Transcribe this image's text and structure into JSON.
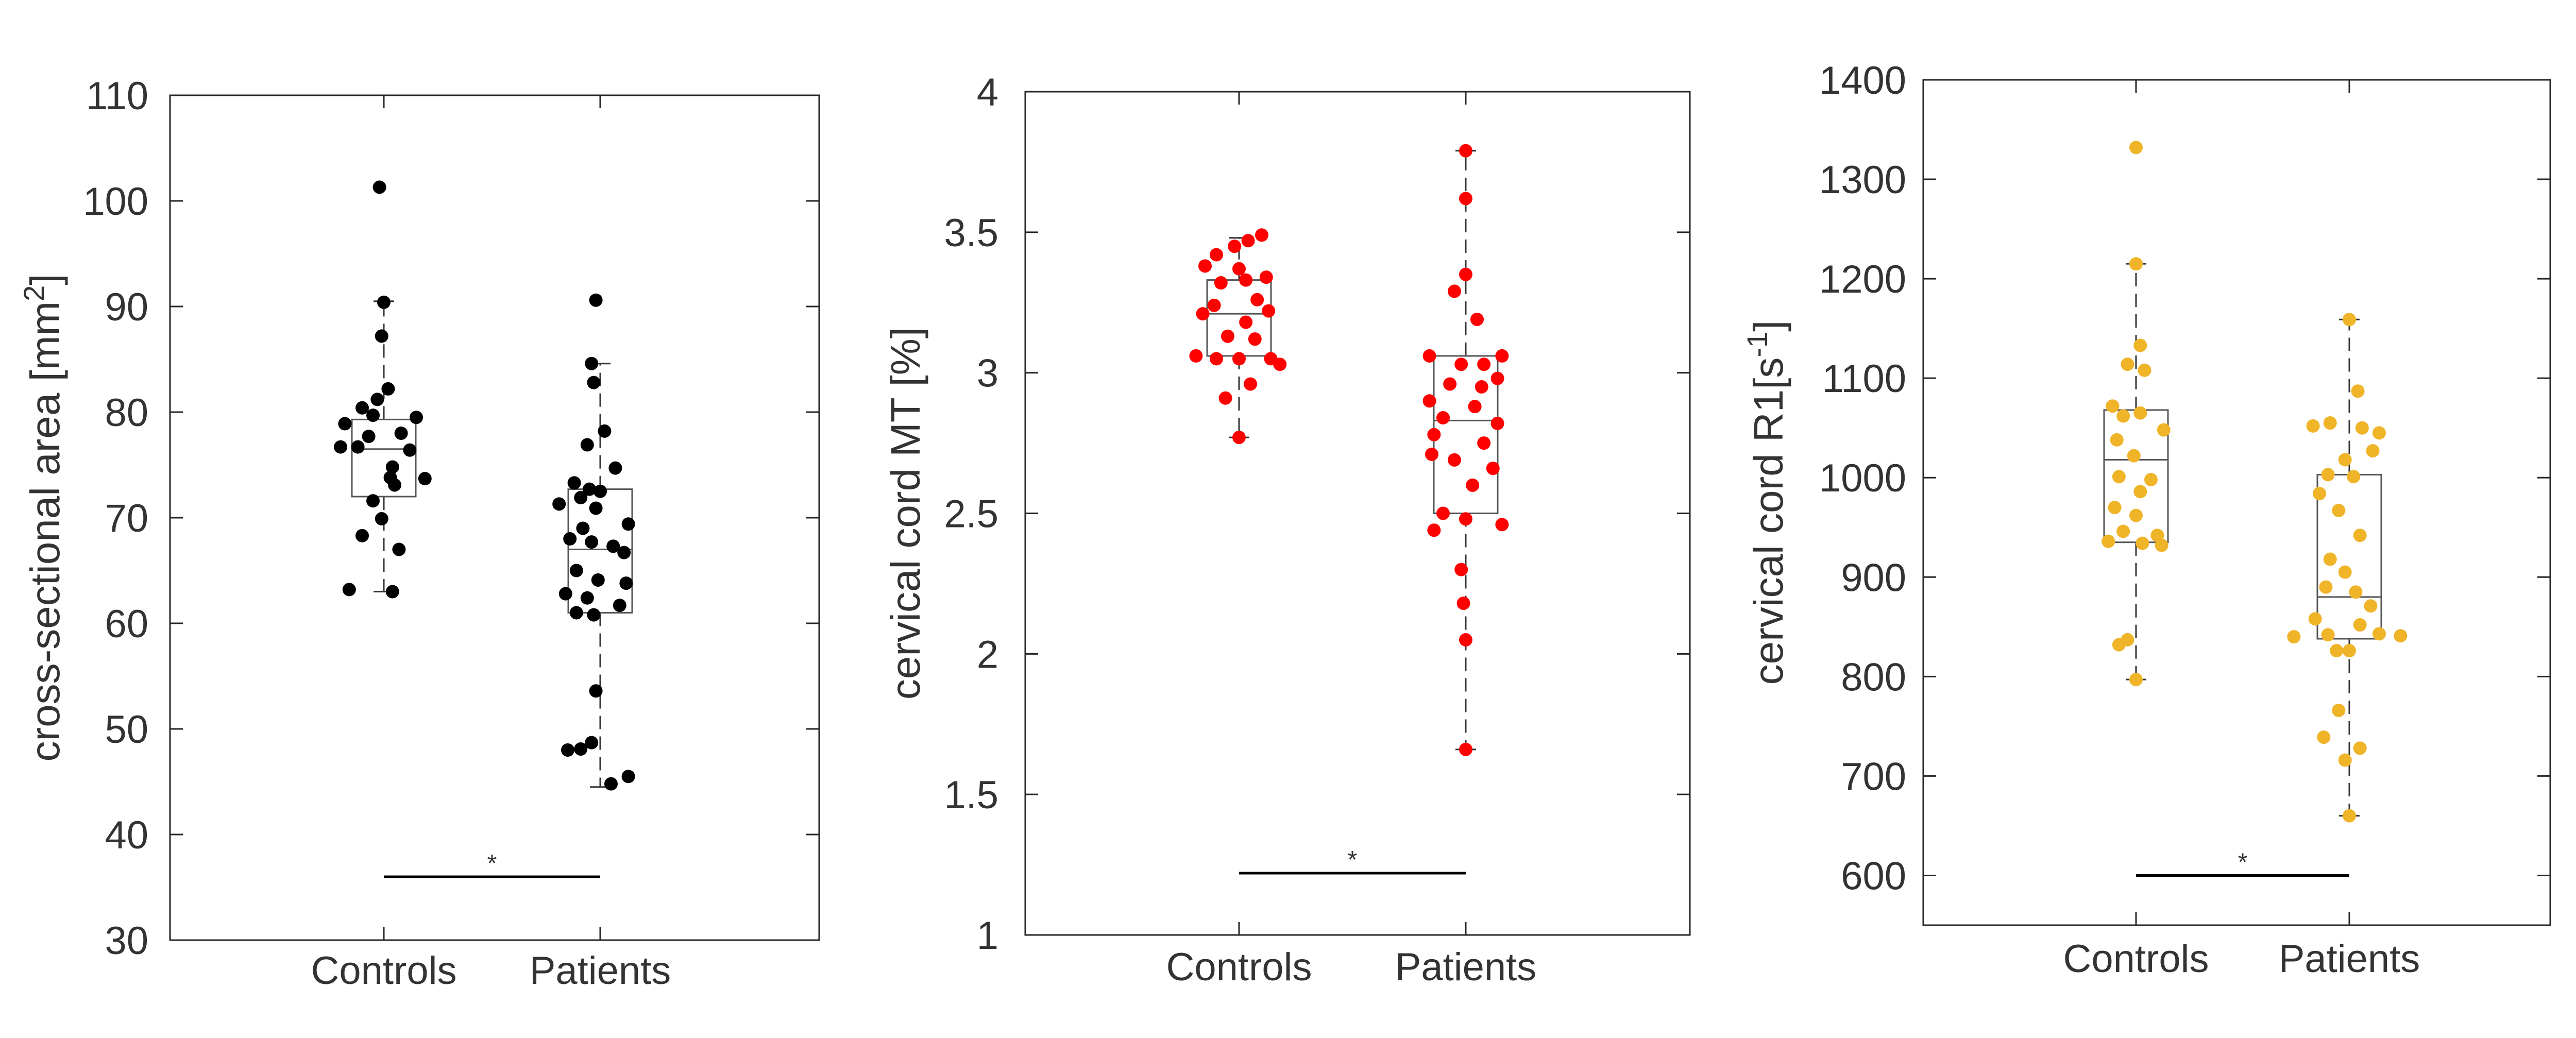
{
  "chart_data": [
    {
      "type": "box-scatter",
      "ylabel": "cross-sectional area [mm",
      "ylabel_sup": "2",
      "ylabel_suffix": "]",
      "ylim": [
        30,
        110
      ],
      "yticks": [
        30,
        40,
        50,
        60,
        70,
        80,
        90,
        100,
        110
      ],
      "categories": [
        "Controls",
        "Patients"
      ],
      "point_color": "#000000",
      "significance": {
        "label": "*",
        "y": 36
      },
      "series": [
        {
          "name": "Controls",
          "box": {
            "q1": 72,
            "median": 76.5,
            "q3": 79.3,
            "whisker_low": 63,
            "whisker_high": 90.5
          },
          "points": [
            {
              "jitter": -0.02,
              "y": 101.3
            },
            {
              "jitter": 0.0,
              "y": 90.4
            },
            {
              "jitter": -0.01,
              "y": 87.2
            },
            {
              "jitter": 0.02,
              "y": 82.2
            },
            {
              "jitter": -0.03,
              "y": 81.2
            },
            {
              "jitter": -0.1,
              "y": 80.4
            },
            {
              "jitter": -0.05,
              "y": 79.7
            },
            {
              "jitter": 0.15,
              "y": 79.5
            },
            {
              "jitter": -0.18,
              "y": 78.9
            },
            {
              "jitter": 0.08,
              "y": 78.0
            },
            {
              "jitter": -0.07,
              "y": 77.7
            },
            {
              "jitter": -0.2,
              "y": 76.7
            },
            {
              "jitter": -0.12,
              "y": 76.7
            },
            {
              "jitter": 0.12,
              "y": 76.4
            },
            {
              "jitter": 0.04,
              "y": 74.8
            },
            {
              "jitter": 0.03,
              "y": 73.8
            },
            {
              "jitter": 0.19,
              "y": 73.7
            },
            {
              "jitter": 0.05,
              "y": 73.1
            },
            {
              "jitter": -0.05,
              "y": 71.6
            },
            {
              "jitter": -0.01,
              "y": 69.9
            },
            {
              "jitter": -0.1,
              "y": 68.3
            },
            {
              "jitter": 0.07,
              "y": 67.0
            },
            {
              "jitter": -0.16,
              "y": 63.2
            },
            {
              "jitter": 0.04,
              "y": 63.0
            }
          ]
        },
        {
          "name": "Patients",
          "box": {
            "q1": 61,
            "median": 67,
            "q3": 72.7,
            "whisker_low": 44.5,
            "whisker_high": 84.6
          },
          "points": [
            {
              "jitter": -0.02,
              "y": 90.6
            },
            {
              "jitter": -0.04,
              "y": 84.6
            },
            {
              "jitter": -0.03,
              "y": 82.8
            },
            {
              "jitter": 0.02,
              "y": 78.2
            },
            {
              "jitter": -0.06,
              "y": 76.9
            },
            {
              "jitter": 0.07,
              "y": 74.7
            },
            {
              "jitter": -0.12,
              "y": 73.3
            },
            {
              "jitter": -0.05,
              "y": 72.7
            },
            {
              "jitter": 0.0,
              "y": 72.5
            },
            {
              "jitter": -0.09,
              "y": 71.9
            },
            {
              "jitter": -0.19,
              "y": 71.3
            },
            {
              "jitter": -0.02,
              "y": 70.9
            },
            {
              "jitter": 0.13,
              "y": 69.4
            },
            {
              "jitter": -0.08,
              "y": 69.0
            },
            {
              "jitter": -0.14,
              "y": 68.0
            },
            {
              "jitter": -0.04,
              "y": 67.7
            },
            {
              "jitter": 0.06,
              "y": 67.3
            },
            {
              "jitter": 0.11,
              "y": 66.7
            },
            {
              "jitter": -0.11,
              "y": 65.0
            },
            {
              "jitter": -0.01,
              "y": 64.1
            },
            {
              "jitter": 0.12,
              "y": 63.8
            },
            {
              "jitter": -0.16,
              "y": 62.8
            },
            {
              "jitter": -0.06,
              "y": 62.4
            },
            {
              "jitter": 0.09,
              "y": 61.7
            },
            {
              "jitter": -0.11,
              "y": 61.0
            },
            {
              "jitter": -0.03,
              "y": 60.8
            },
            {
              "jitter": -0.02,
              "y": 53.6
            },
            {
              "jitter": -0.04,
              "y": 48.7
            },
            {
              "jitter": -0.09,
              "y": 48.1
            },
            {
              "jitter": -0.15,
              "y": 48.0
            },
            {
              "jitter": 0.13,
              "y": 45.5
            },
            {
              "jitter": 0.05,
              "y": 44.8
            }
          ]
        }
      ]
    },
    {
      "type": "box-scatter",
      "ylabel": "cervical cord MT [%]",
      "ylim": [
        1,
        4
      ],
      "yticks": [
        1,
        1.5,
        2,
        2.5,
        3,
        3.5,
        4
      ],
      "categories": [
        "Controls",
        "Patients"
      ],
      "point_color": "#ff0000",
      "significance": {
        "label": "*",
        "y": 1.22
      },
      "series": [
        {
          "name": "Controls",
          "box": {
            "q1": 3.06,
            "median": 3.21,
            "q3": 3.33,
            "whisker_low": 2.77,
            "whisker_high": 3.48
          },
          "points": [
            {
              "jitter": 0.1,
              "y": 3.49
            },
            {
              "jitter": 0.04,
              "y": 3.47
            },
            {
              "jitter": -0.02,
              "y": 3.45
            },
            {
              "jitter": -0.1,
              "y": 3.42
            },
            {
              "jitter": -0.15,
              "y": 3.38
            },
            {
              "jitter": 0.0,
              "y": 3.37
            },
            {
              "jitter": 0.12,
              "y": 3.34
            },
            {
              "jitter": 0.03,
              "y": 3.33
            },
            {
              "jitter": -0.08,
              "y": 3.32
            },
            {
              "jitter": 0.08,
              "y": 3.26
            },
            {
              "jitter": -0.11,
              "y": 3.24
            },
            {
              "jitter": 0.13,
              "y": 3.22
            },
            {
              "jitter": -0.16,
              "y": 3.21
            },
            {
              "jitter": 0.03,
              "y": 3.18
            },
            {
              "jitter": -0.05,
              "y": 3.13
            },
            {
              "jitter": 0.07,
              "y": 3.12
            },
            {
              "jitter": -0.19,
              "y": 3.06
            },
            {
              "jitter": -0.1,
              "y": 3.05
            },
            {
              "jitter": 0.0,
              "y": 3.05
            },
            {
              "jitter": 0.14,
              "y": 3.05
            },
            {
              "jitter": 0.18,
              "y": 3.03
            },
            {
              "jitter": 0.05,
              "y": 2.96
            },
            {
              "jitter": -0.06,
              "y": 2.91
            },
            {
              "jitter": 0.0,
              "y": 2.77
            }
          ]
        },
        {
          "name": "Patients",
          "box": {
            "q1": 2.5,
            "median": 2.83,
            "q3": 3.06,
            "whisker_low": 1.66,
            "whisker_high": 3.79
          },
          "points": [
            {
              "jitter": 0.0,
              "y": 3.79
            },
            {
              "jitter": 0.0,
              "y": 3.62
            },
            {
              "jitter": 0.0,
              "y": 3.35
            },
            {
              "jitter": -0.05,
              "y": 3.29
            },
            {
              "jitter": 0.05,
              "y": 3.19
            },
            {
              "jitter": -0.16,
              "y": 3.06
            },
            {
              "jitter": 0.16,
              "y": 3.06
            },
            {
              "jitter": -0.02,
              "y": 3.03
            },
            {
              "jitter": 0.08,
              "y": 3.03
            },
            {
              "jitter": 0.14,
              "y": 2.98
            },
            {
              "jitter": -0.07,
              "y": 2.96
            },
            {
              "jitter": 0.07,
              "y": 2.95
            },
            {
              "jitter": -0.16,
              "y": 2.9
            },
            {
              "jitter": 0.04,
              "y": 2.88
            },
            {
              "jitter": -0.1,
              "y": 2.84
            },
            {
              "jitter": 0.14,
              "y": 2.82
            },
            {
              "jitter": -0.14,
              "y": 2.78
            },
            {
              "jitter": 0.08,
              "y": 2.75
            },
            {
              "jitter": -0.15,
              "y": 2.71
            },
            {
              "jitter": -0.05,
              "y": 2.69
            },
            {
              "jitter": 0.12,
              "y": 2.66
            },
            {
              "jitter": 0.03,
              "y": 2.6
            },
            {
              "jitter": -0.1,
              "y": 2.5
            },
            {
              "jitter": 0.0,
              "y": 2.48
            },
            {
              "jitter": 0.16,
              "y": 2.46
            },
            {
              "jitter": -0.14,
              "y": 2.44
            },
            {
              "jitter": -0.02,
              "y": 2.3
            },
            {
              "jitter": -0.01,
              "y": 2.18
            },
            {
              "jitter": 0.0,
              "y": 2.05
            },
            {
              "jitter": 0.0,
              "y": 1.66
            }
          ]
        }
      ]
    },
    {
      "type": "box-scatter",
      "ylabel": "cervical cord R1[s",
      "ylabel_sup": "-1",
      "ylabel_suffix": "]",
      "ylim": [
        550,
        1400
      ],
      "yticks": [
        600,
        700,
        800,
        900,
        1000,
        1100,
        1200,
        1300,
        1400
      ],
      "categories": [
        "Controls",
        "Patients"
      ],
      "point_color": "#f0b429",
      "significance": {
        "label": "*",
        "y": 600
      },
      "series": [
        {
          "name": "Controls",
          "box": {
            "q1": 935,
            "median": 1018,
            "q3": 1068,
            "whisker_low": 797,
            "whisker_high": 1215
          },
          "points": [
            {
              "jitter": 0.0,
              "y": 1332
            },
            {
              "jitter": 0.0,
              "y": 1215
            },
            {
              "jitter": 0.02,
              "y": 1133
            },
            {
              "jitter": -0.04,
              "y": 1114
            },
            {
              "jitter": 0.04,
              "y": 1108
            },
            {
              "jitter": -0.11,
              "y": 1072
            },
            {
              "jitter": -0.06,
              "y": 1062
            },
            {
              "jitter": 0.02,
              "y": 1065
            },
            {
              "jitter": 0.13,
              "y": 1048
            },
            {
              "jitter": -0.09,
              "y": 1038
            },
            {
              "jitter": -0.01,
              "y": 1022
            },
            {
              "jitter": -0.08,
              "y": 1001
            },
            {
              "jitter": 0.07,
              "y": 998
            },
            {
              "jitter": 0.02,
              "y": 986
            },
            {
              "jitter": -0.1,
              "y": 970
            },
            {
              "jitter": 0.0,
              "y": 962
            },
            {
              "jitter": -0.06,
              "y": 946
            },
            {
              "jitter": 0.1,
              "y": 942
            },
            {
              "jitter": -0.13,
              "y": 936
            },
            {
              "jitter": 0.03,
              "y": 934
            },
            {
              "jitter": 0.12,
              "y": 932
            },
            {
              "jitter": -0.04,
              "y": 837
            },
            {
              "jitter": -0.08,
              "y": 832
            },
            {
              "jitter": 0.0,
              "y": 797
            }
          ]
        },
        {
          "name": "Patients",
          "box": {
            "q1": 838,
            "median": 880,
            "q3": 1003,
            "whisker_low": 660,
            "whisker_high": 1159
          },
          "points": [
            {
              "jitter": 0.0,
              "y": 1159
            },
            {
              "jitter": 0.04,
              "y": 1087
            },
            {
              "jitter": -0.09,
              "y": 1055
            },
            {
              "jitter": -0.17,
              "y": 1052
            },
            {
              "jitter": 0.06,
              "y": 1050
            },
            {
              "jitter": 0.14,
              "y": 1045
            },
            {
              "jitter": 0.11,
              "y": 1027
            },
            {
              "jitter": -0.02,
              "y": 1018
            },
            {
              "jitter": -0.1,
              "y": 1003
            },
            {
              "jitter": 0.02,
              "y": 1001
            },
            {
              "jitter": -0.14,
              "y": 984
            },
            {
              "jitter": -0.05,
              "y": 967
            },
            {
              "jitter": 0.05,
              "y": 942
            },
            {
              "jitter": -0.09,
              "y": 918
            },
            {
              "jitter": -0.02,
              "y": 905
            },
            {
              "jitter": -0.11,
              "y": 890
            },
            {
              "jitter": 0.03,
              "y": 885
            },
            {
              "jitter": 0.1,
              "y": 871
            },
            {
              "jitter": -0.16,
              "y": 858
            },
            {
              "jitter": 0.05,
              "y": 852
            },
            {
              "jitter": -0.26,
              "y": 840
            },
            {
              "jitter": -0.1,
              "y": 842
            },
            {
              "jitter": 0.14,
              "y": 843
            },
            {
              "jitter": 0.24,
              "y": 841
            },
            {
              "jitter": -0.06,
              "y": 826
            },
            {
              "jitter": 0.0,
              "y": 826
            },
            {
              "jitter": -0.05,
              "y": 766
            },
            {
              "jitter": -0.12,
              "y": 739
            },
            {
              "jitter": 0.05,
              "y": 728
            },
            {
              "jitter": -0.02,
              "y": 716
            },
            {
              "jitter": 0.0,
              "y": 660
            }
          ]
        }
      ]
    }
  ]
}
